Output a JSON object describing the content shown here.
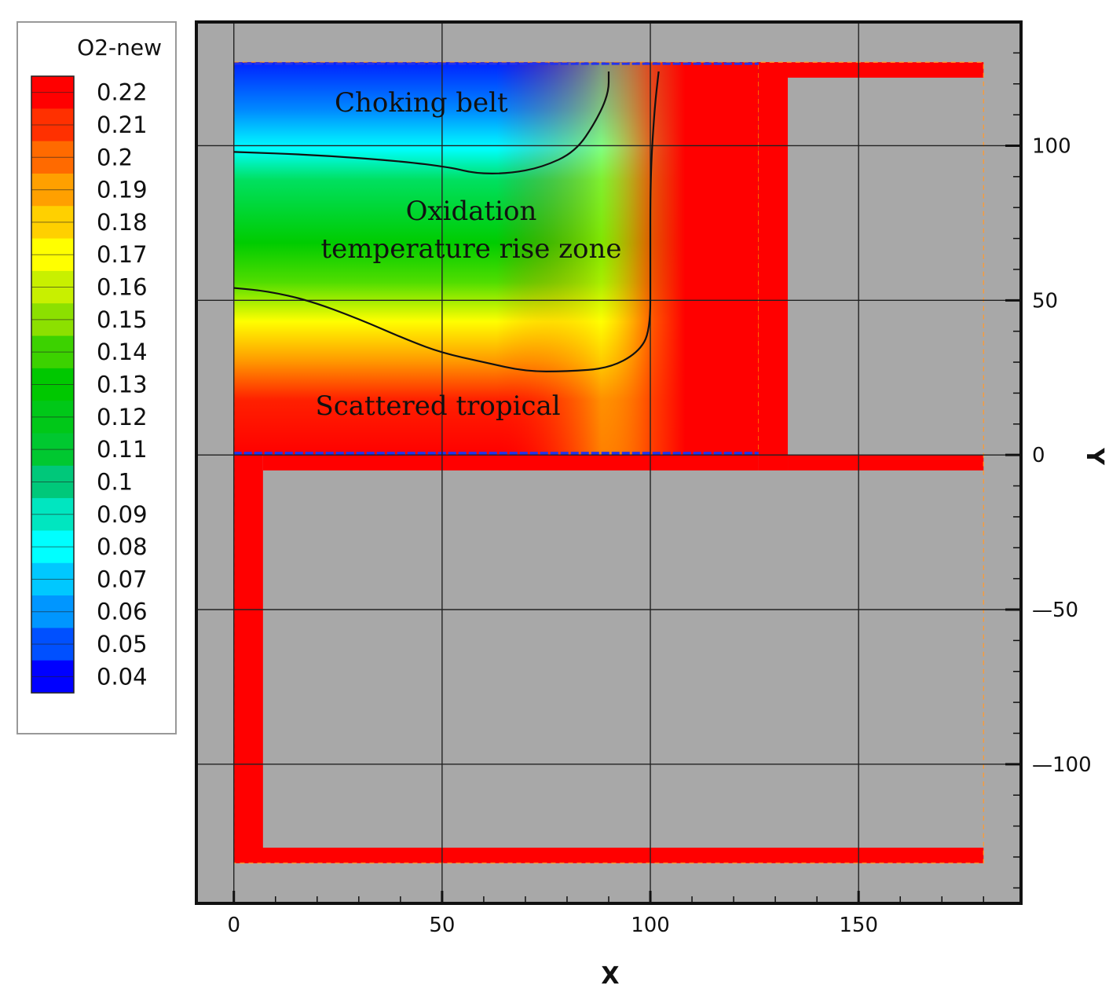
{
  "chart_data": {
    "type": "heatmap",
    "title": "",
    "xlabel": "X",
    "ylabel": "Y",
    "xlim": [
      -9,
      189
    ],
    "ylim": [
      -145,
      140
    ],
    "x_ticks": [
      0,
      50,
      100,
      150
    ],
    "y_ticks": [
      100,
      50,
      0,
      -50,
      -100
    ],
    "x_tick_labels": [
      "0",
      "50",
      "100",
      "150"
    ],
    "y_tick_labels": [
      "100",
      "50",
      "0",
      "—50",
      "—100"
    ],
    "grid": true,
    "background_color": "#a8a8a8",
    "colorbar": {
      "title": "O2-new",
      "position": "left",
      "levels": [
        0.22,
        0.21,
        0.2,
        0.19,
        0.18,
        0.17,
        0.16,
        0.15,
        0.14,
        0.13,
        0.12,
        0.11,
        0.1,
        0.09,
        0.08,
        0.07,
        0.06,
        0.05,
        0.04
      ],
      "level_labels": [
        "0.22",
        "0.21",
        "0.2",
        "0.19",
        "0.18",
        "0.17",
        "0.16",
        "0.15",
        "0.14",
        "0.13",
        "0.12",
        "0.11",
        "0.1",
        "0.09",
        "0.08",
        "0.07",
        "0.06",
        "0.05",
        "0.04"
      ],
      "colors": [
        "#ff0000",
        "#ff3000",
        "#ff6a00",
        "#ffa000",
        "#ffd000",
        "#ffff00",
        "#c8f000",
        "#8ce000",
        "#3cd200",
        "#00c800",
        "#00c818",
        "#00c830",
        "#00c87a",
        "#00e6c0",
        "#00ffff",
        "#00c8ff",
        "#0096ff",
        "#0050ff",
        "#0000ff"
      ]
    },
    "zones": [
      {
        "label": "Choking belt",
        "o2_range": [
          0.04,
          0.08
        ]
      },
      {
        "label": "Oxidation",
        "label_line2": "temperature rise zone",
        "o2_range": [
          0.08,
          0.18
        ]
      },
      {
        "label": "Scattered tropical",
        "o2_range": [
          0.18,
          0.22
        ]
      }
    ],
    "contour_lines": [
      {
        "name": "upper",
        "points": [
          [
            0,
            98
          ],
          [
            20,
            97
          ],
          [
            40,
            95
          ],
          [
            52,
            93
          ],
          [
            58,
            91
          ],
          [
            66,
            91
          ],
          [
            74,
            93
          ],
          [
            82,
            98
          ],
          [
            87,
            108
          ],
          [
            90,
            117
          ],
          [
            90,
            124
          ]
        ]
      },
      {
        "name": "lower",
        "points": [
          [
            0,
            54
          ],
          [
            8,
            53
          ],
          [
            18,
            50
          ],
          [
            30,
            44
          ],
          [
            42,
            37
          ],
          [
            50,
            33
          ],
          [
            60,
            30
          ],
          [
            70,
            27
          ],
          [
            80,
            27
          ],
          [
            90,
            28
          ],
          [
            97,
            33
          ],
          [
            100,
            40
          ],
          [
            100,
            60
          ],
          [
            100,
            90
          ],
          [
            101,
            112
          ],
          [
            102,
            124
          ]
        ]
      }
    ],
    "domain_bars": [
      {
        "x": [
          0,
          180
        ],
        "y": [
          122,
          127
        ]
      },
      {
        "x": [
          126,
          133
        ],
        "y": [
          0,
          127
        ]
      },
      {
        "x": [
          133,
          180
        ],
        "y": [
          -5,
          0
        ]
      },
      {
        "x": [
          126,
          133
        ],
        "y": [
          -5,
          0
        ]
      },
      {
        "x": [
          0,
          7
        ],
        "y": [
          -132,
          0
        ]
      },
      {
        "x": [
          7,
          126
        ],
        "y": [
          -5,
          0
        ]
      },
      {
        "x": [
          0,
          180
        ],
        "y": [
          -132,
          -127
        ]
      }
    ],
    "contour_region": {
      "x": [
        0,
        126
      ],
      "y": [
        0,
        127
      ]
    }
  }
}
